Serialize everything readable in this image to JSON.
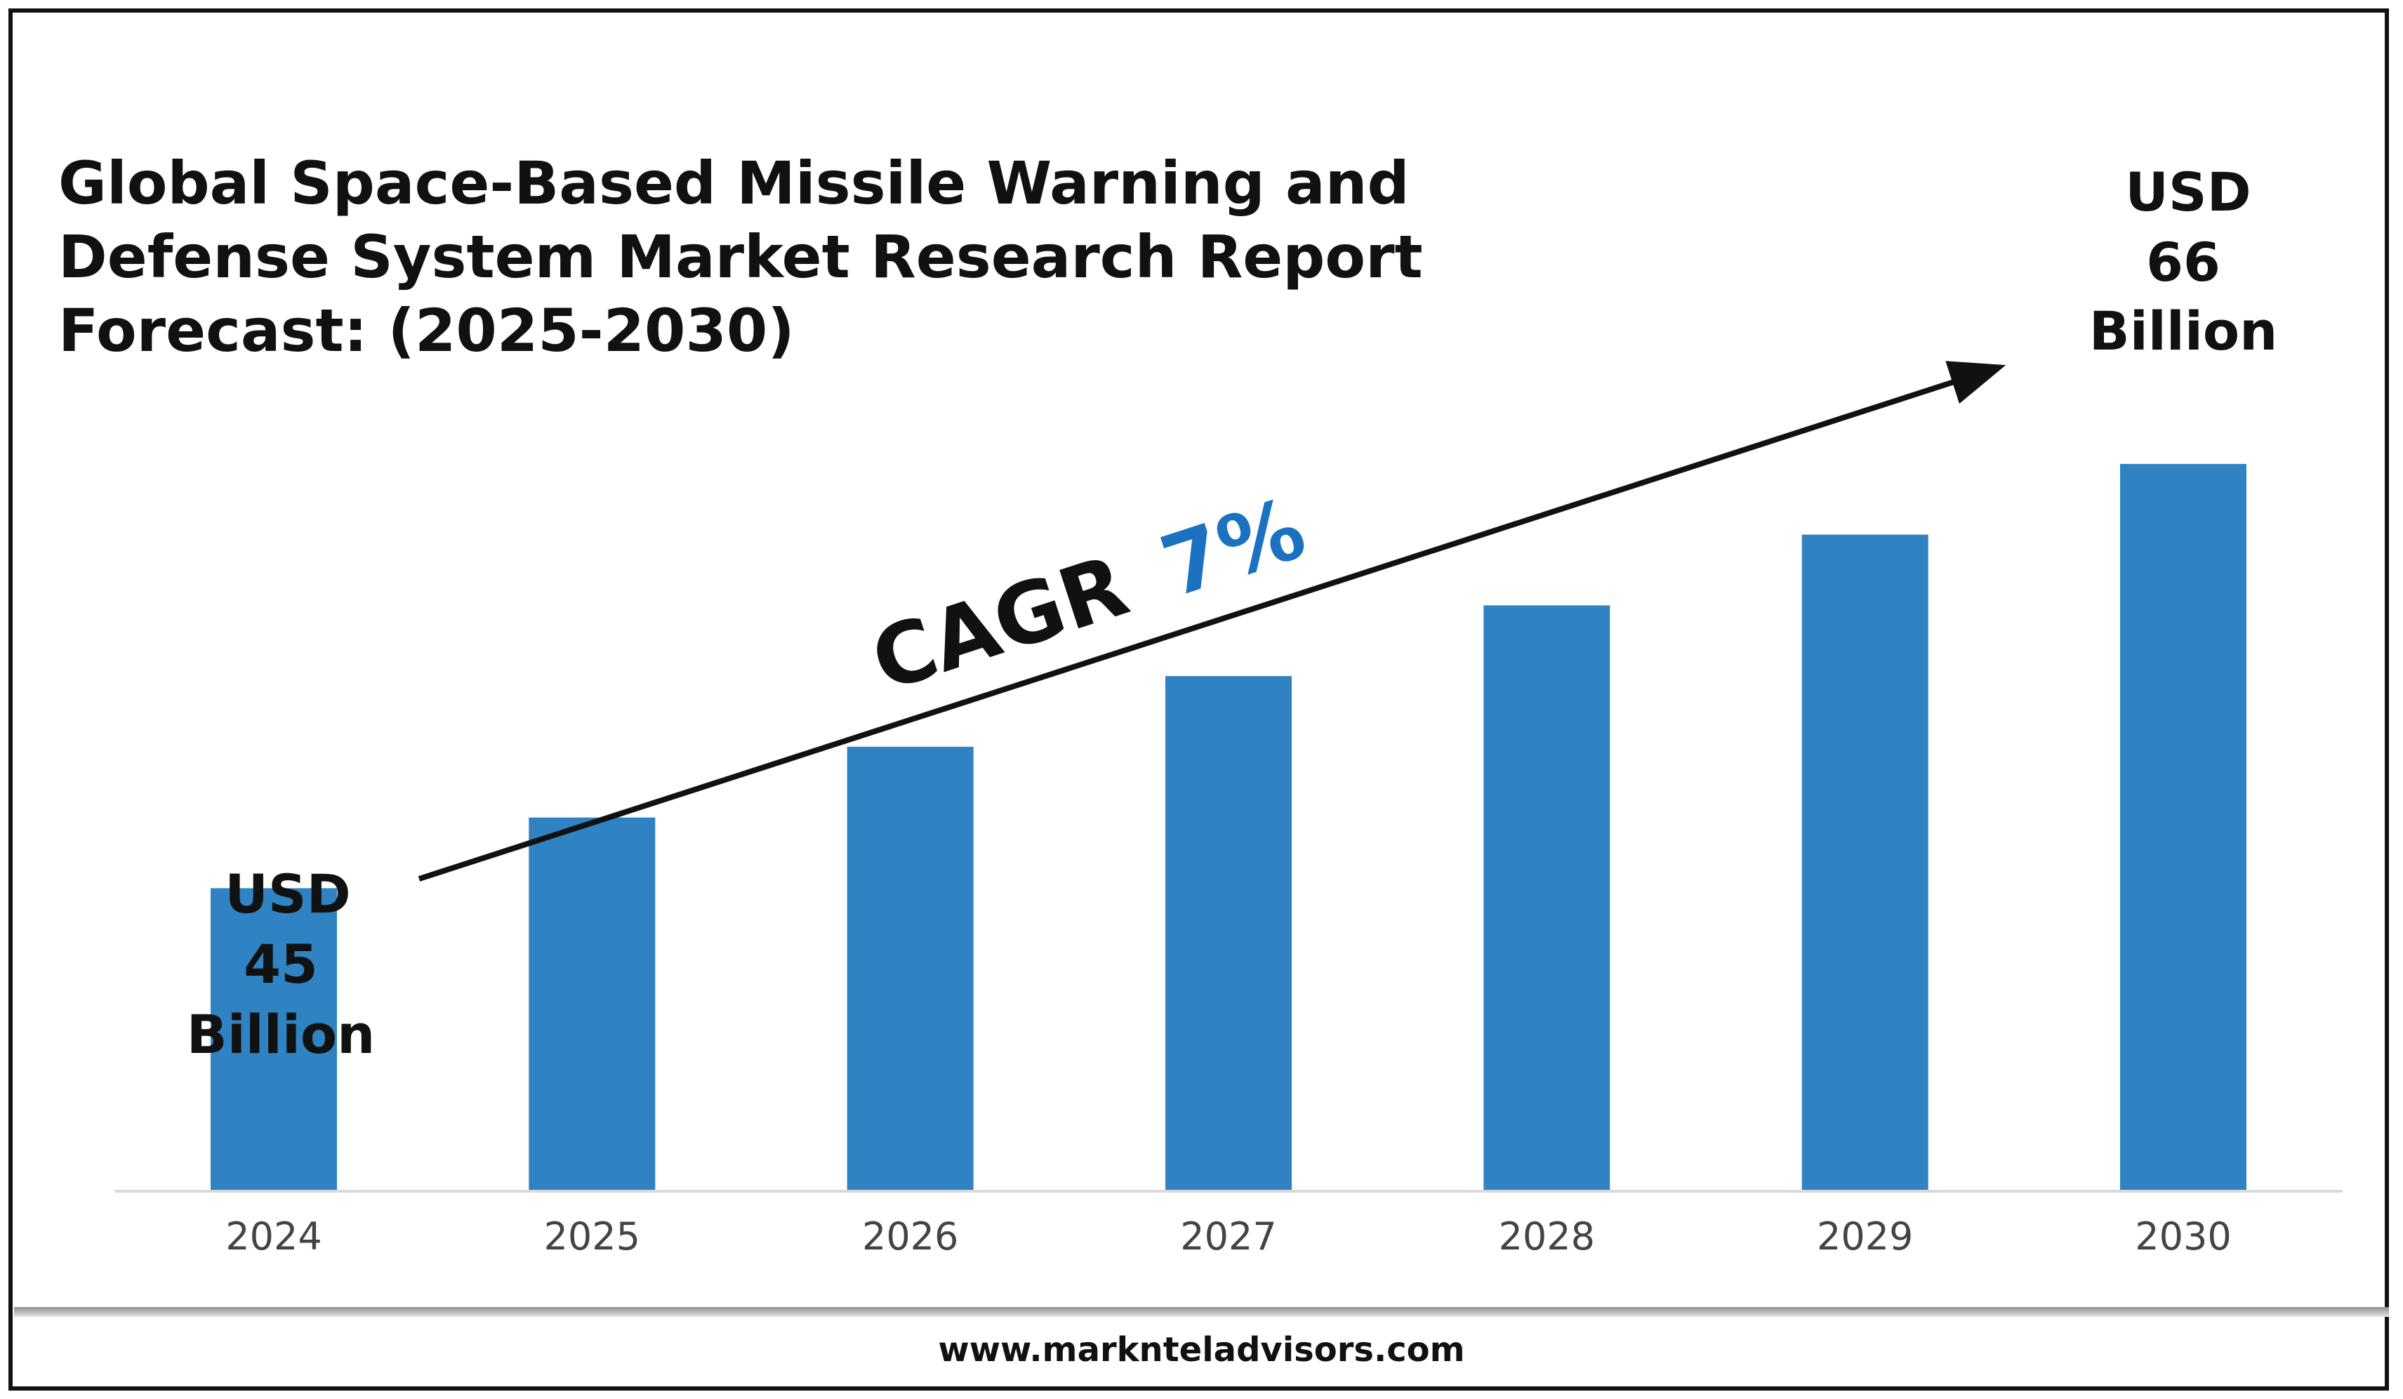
{
  "chart_data": {
    "type": "bar",
    "title_lines": [
      "Global Space-Based Missile Warning and",
      "Defense System Market Research Report",
      "Forecast: (2025-2030)"
    ],
    "categories": [
      "2024",
      "2025",
      "2026",
      "2027",
      "2028",
      "2029",
      "2030"
    ],
    "values": [
      45,
      48.5,
      52,
      55.5,
      59,
      62.5,
      66
    ],
    "unit": "USD Billion",
    "ylim": [
      30,
      71
    ],
    "grid": false,
    "bar_color": "#2f83c3",
    "start_label": [
      "USD",
      "45",
      "Billion"
    ],
    "end_label": [
      "USD",
      "66",
      "Billion"
    ],
    "cagr_label": "CAGR",
    "cagr_value": "7%",
    "cagr_value_color": "#1a72c0",
    "annotation": "trend-arrow from first bar to last bar"
  },
  "footer": {
    "url": "www.marknteladvisors.com"
  }
}
